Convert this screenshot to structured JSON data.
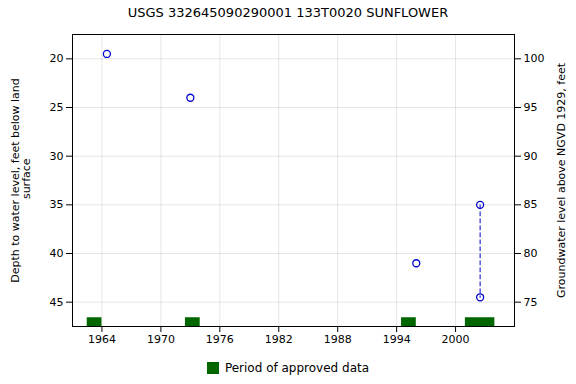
{
  "chart_data": {
    "type": "scatter",
    "title": "USGS 332645090290001 133T0020  SUNFLOWER",
    "series": [
      {
        "type": "scatter",
        "marker": "circle",
        "color": "#0000cc",
        "x": [
          1964.5,
          1973.0,
          1996.0,
          2002.5,
          2002.5
        ],
        "values": [
          19.5,
          24.0,
          41.0,
          35.0,
          44.5
        ]
      },
      {
        "type": "line",
        "line_style": "dashed",
        "color": "#0000cc",
        "x": [
          2002.5,
          2002.5
        ],
        "values": [
          35.0,
          44.5
        ]
      },
      {
        "name": "Period of approved data",
        "type": "bar",
        "color": "#006600",
        "x": [
          1962.5,
          1972.5,
          1994.5,
          2001.0
        ],
        "x2": [
          1964.0,
          1974.0,
          1996.0,
          2004.0
        ]
      }
    ],
    "xlim": [
      1961,
      2006
    ],
    "xticks": [
      1964,
      1970,
      1976,
      1982,
      1988,
      1994,
      2000
    ],
    "ylim": [
      47.5,
      17.5
    ],
    "yticks": [
      20,
      25,
      30,
      35,
      40,
      45
    ],
    "y2lim": [
      72.5,
      102.5
    ],
    "y2ticks": [
      75,
      80,
      85,
      90,
      95,
      100
    ],
    "ylabel": "Depth to water level, feet below land\n surface",
    "y2label": "Groundwater level above NGVD 1929, feet",
    "grid": true,
    "legend": "bottom"
  }
}
